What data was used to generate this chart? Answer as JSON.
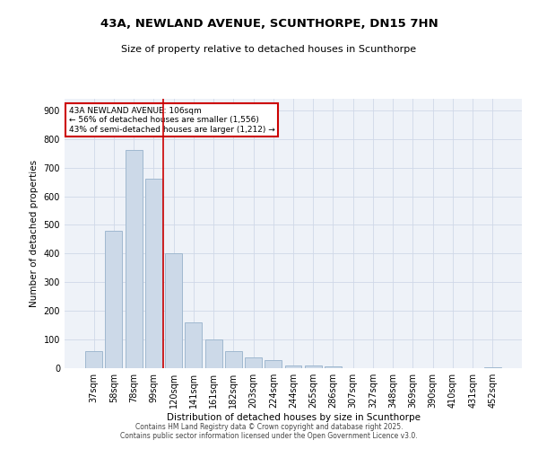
{
  "title_line1": "43A, NEWLAND AVENUE, SCUNTHORPE, DN15 7HN",
  "title_line2": "Size of property relative to detached houses in Scunthorpe",
  "xlabel": "Distribution of detached houses by size in Scunthorpe",
  "ylabel": "Number of detached properties",
  "categories": [
    "37sqm",
    "58sqm",
    "78sqm",
    "99sqm",
    "120sqm",
    "141sqm",
    "161sqm",
    "182sqm",
    "203sqm",
    "224sqm",
    "244sqm",
    "265sqm",
    "286sqm",
    "307sqm",
    "327sqm",
    "348sqm",
    "369sqm",
    "390sqm",
    "410sqm",
    "431sqm",
    "452sqm"
  ],
  "values": [
    60,
    480,
    760,
    660,
    400,
    160,
    100,
    60,
    38,
    28,
    10,
    8,
    5,
    0,
    0,
    0,
    0,
    0,
    0,
    0,
    2
  ],
  "bar_color": "#ccd9e8",
  "bar_edge_color": "#a0b8d0",
  "vline_x": 3.5,
  "vline_color": "#cc0000",
  "annotation_text": "43A NEWLAND AVENUE: 106sqm\n← 56% of detached houses are smaller (1,556)\n43% of semi-detached houses are larger (1,212) →",
  "annotation_box_color": "#cc0000",
  "ylim": [
    0,
    940
  ],
  "yticks": [
    0,
    100,
    200,
    300,
    400,
    500,
    600,
    700,
    800,
    900
  ],
  "grid_color": "#d0d8e8",
  "bg_color": "#eef2f8",
  "footer_line1": "Contains HM Land Registry data © Crown copyright and database right 2025.",
  "footer_line2": "Contains public sector information licensed under the Open Government Licence v3.0."
}
